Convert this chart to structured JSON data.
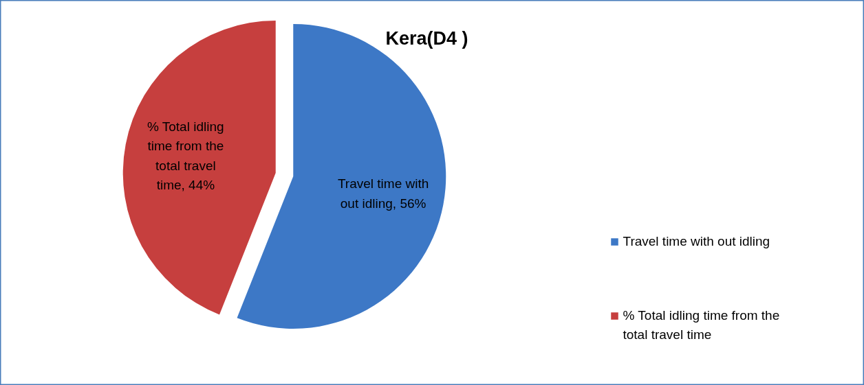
{
  "chart_data": {
    "type": "pie",
    "title": "Kera(D4 )",
    "categories": [
      "Travel time with out idling",
      "% Total idling time from the total travel time"
    ],
    "values": [
      56,
      44
    ],
    "colors": [
      "#3d78c6",
      "#c63f3e"
    ],
    "value_labels": [
      "Travel time with out idling, 56%",
      "% Total idling time from the total travel time, 44%"
    ],
    "legend": "right"
  }
}
